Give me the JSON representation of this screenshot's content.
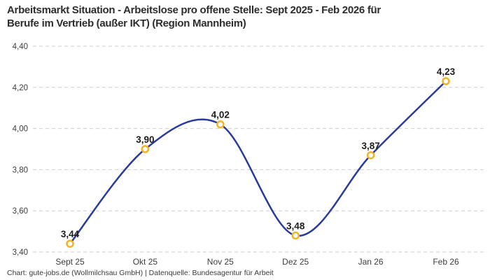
{
  "title": {
    "line1": "Arbeitsmarkt Situation - Arbeitslose pro offene Stelle: Sept 2025 - Feb 2026 für",
    "line2": "Berufe im Vertrieb (außer IKT) (Region Mannheim)"
  },
  "footer": {
    "text": "Chart: gute-jobs.de (Wollmilchsau GmbH) | Datenquelle: Bundesagentur für Arbeit"
  },
  "chart_data": {
    "type": "line",
    "title": "Arbeitsmarkt Situation - Arbeitslose pro offene Stelle: Sept 2025 - Feb 2026 für Berufe im Vertrieb (außer IKT) (Region Mannheim)",
    "categories": [
      "Sept 25",
      "Okt 25",
      "Nov 25",
      "Dez 25",
      "Jan 26",
      "Feb 26"
    ],
    "values": [
      3.44,
      3.9,
      4.02,
      3.48,
      3.87,
      4.23
    ],
    "point_labels": [
      "3,44",
      "3,90",
      "4,02",
      "3,48",
      "3,87",
      "4,23"
    ],
    "y_ticks": [
      3.4,
      3.6,
      3.8,
      4.0,
      4.2,
      4.4
    ],
    "y_tick_labels": [
      "3,40",
      "3,60",
      "3,80",
      "4,00",
      "4,20",
      "4,40"
    ],
    "ylim": [
      3.4,
      4.4
    ],
    "xlabel": "",
    "ylabel": "",
    "grid": "horizontal-dashed",
    "legend": "none",
    "curve": "smooth",
    "colors": {
      "line": "#2a3b9c",
      "marker_ring": "#f0b429",
      "marker_fill": "#ffffff",
      "grid": "#cdcdcd",
      "axis_text": "#3c3c3c",
      "point_label_text": "#1d1d1d",
      "title_text": "#2d2d2d",
      "background": "#ffffff"
    }
  }
}
